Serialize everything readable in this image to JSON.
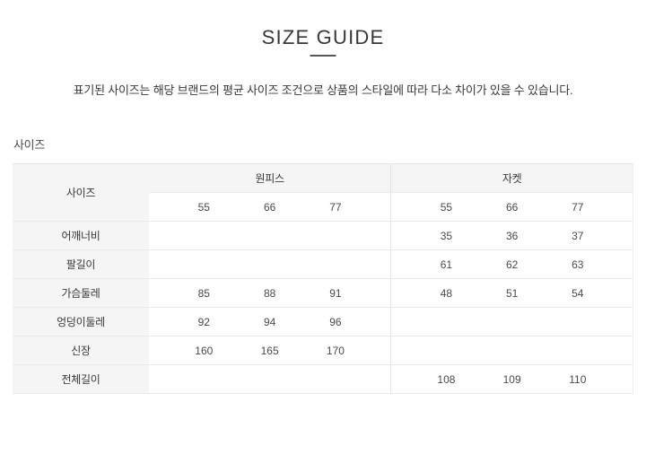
{
  "title": "SIZE GUIDE",
  "description": "표기된 사이즈는 해당 브랜드의 평균 사이즈 조건으로 상품의 스타일에 따라 다소 차이가 있을 수 있습니다.",
  "section_label": "사이즈",
  "table": {
    "corner_label": "사이즈",
    "column_groups": [
      {
        "key": "dress",
        "label": "원피스",
        "sizes": [
          "55",
          "66",
          "77"
        ]
      },
      {
        "key": "jacket",
        "label": "자켓",
        "sizes": [
          "55",
          "66",
          "77"
        ]
      }
    ],
    "rows": [
      {
        "label": "어깨너비",
        "cells": [
          [
            "",
            "",
            ""
          ],
          [
            "35",
            "36",
            "37"
          ]
        ]
      },
      {
        "label": "팔길이",
        "cells": [
          [
            "",
            "",
            ""
          ],
          [
            "61",
            "62",
            "63"
          ]
        ]
      },
      {
        "label": "가슴둘레",
        "cells": [
          [
            "85",
            "88",
            "91"
          ],
          [
            "48",
            "51",
            "54"
          ]
        ]
      },
      {
        "label": "엉덩이둘레",
        "cells": [
          [
            "92",
            "94",
            "96"
          ],
          [
            "",
            "",
            ""
          ]
        ]
      },
      {
        "label": "신장",
        "cells": [
          [
            "160",
            "165",
            "170"
          ],
          [
            "",
            "",
            ""
          ]
        ]
      },
      {
        "label": "전체길이",
        "cells": [
          [
            "",
            "",
            ""
          ],
          [
            "108",
            "109",
            "110"
          ]
        ]
      }
    ]
  },
  "colors": {
    "header_bg": "#f5f5f5",
    "row_border": "#eaeaea",
    "outer_border": "#e3e3e3",
    "group_divider": "#e4e4e4",
    "text_title": "#383838",
    "text_num": "#4a4a4a",
    "title_divider": "#575757"
  }
}
